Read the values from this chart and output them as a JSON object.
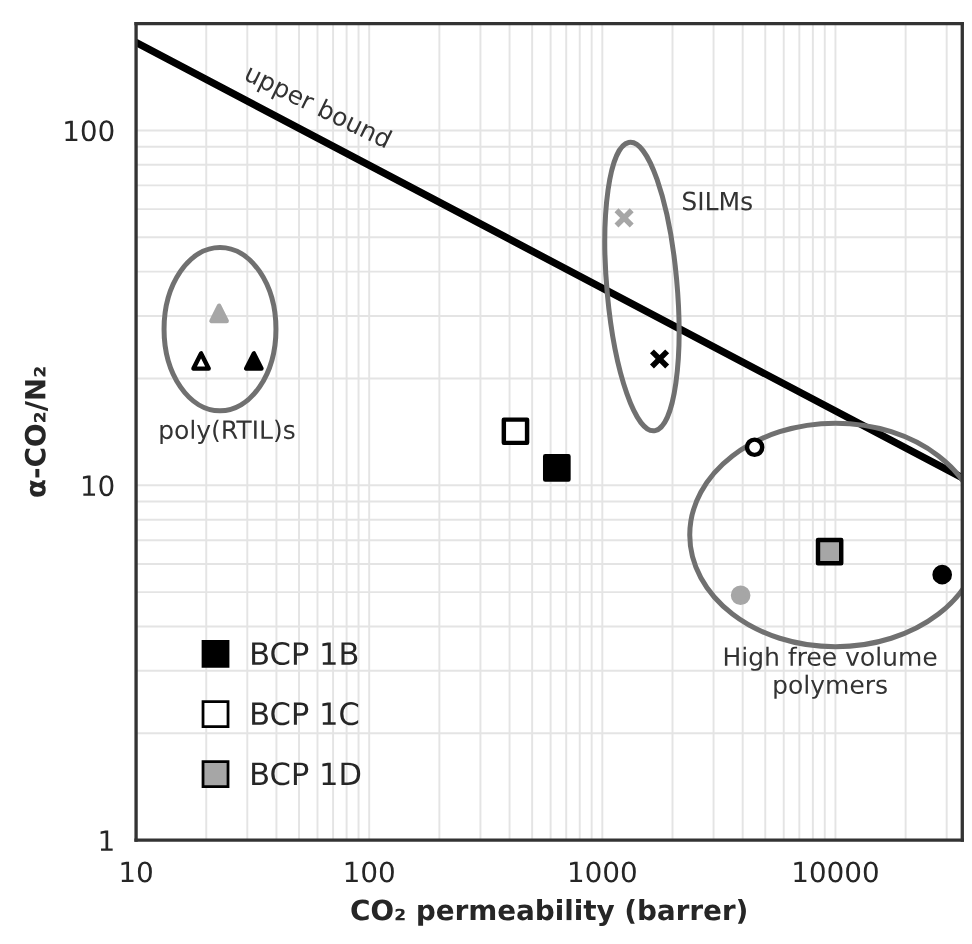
{
  "chart_data": {
    "type": "scatter",
    "xlabel": "CO₂ permeability (barrer)",
    "ylabel": "α-CO₂/N₂",
    "log": "xy",
    "xlim": [
      10,
      35000
    ],
    "ylim": [
      1,
      200
    ],
    "xticks": [
      10,
      100,
      1000,
      10000
    ],
    "yticks": [
      1,
      10,
      100
    ],
    "grid": true,
    "legend": "bottom left",
    "series": [
      {
        "name": "BCP 1B",
        "color": "#000000",
        "marker": "square",
        "x": [
          638
        ],
        "values": [
          11.2
        ]
      },
      {
        "name": "BCP 1C",
        "color": "#ffffff",
        "marker": "square",
        "x": [
          424
        ],
        "values": [
          14.2
        ]
      },
      {
        "name": "BCP 1D",
        "color": "#a6a6a6",
        "marker": "square",
        "x": [
          9440
        ],
        "values": [
          6.5
        ]
      },
      {
        "color": "#a6a6a6",
        "marker": "triangle",
        "x": [
          22.7
        ],
        "values": [
          30.5
        ]
      },
      {
        "color": "#ffffff",
        "marker": "triangle",
        "x": [
          19
        ],
        "values": [
          22.4
        ]
      },
      {
        "color": "#000000",
        "marker": "triangle",
        "x": [
          32
        ],
        "values": [
          22.4
        ]
      },
      {
        "color": "#a6a6a6",
        "marker": "cross",
        "x": [
          1240
        ],
        "values": [
          56.7
        ]
      },
      {
        "color": "#000000",
        "marker": "cross",
        "x": [
          1760
        ],
        "values": [
          22.7
        ]
      },
      {
        "color": "#ffffff",
        "marker": "circle",
        "x": [
          4500
        ],
        "values": [
          12.8
        ]
      },
      {
        "color": "#a6a6a6",
        "marker": "circle",
        "x": [
          3920
        ],
        "values": [
          4.9
        ]
      },
      {
        "color": "#000000",
        "marker": "circle",
        "x": [
          28700
        ],
        "values": [
          5.6
        ]
      },
      {
        "type": "line",
        "color": "#000000",
        "marker": "none",
        "x": [
          10,
          35000
        ],
        "values": [
          177,
          10.5
        ]
      }
    ],
    "annotations": [
      {
        "text": "upper bound",
        "x": 60,
        "y": 95
      },
      "SILMs",
      "poly(RTIL)s",
      "High free volume\npolymers"
    ]
  }
}
